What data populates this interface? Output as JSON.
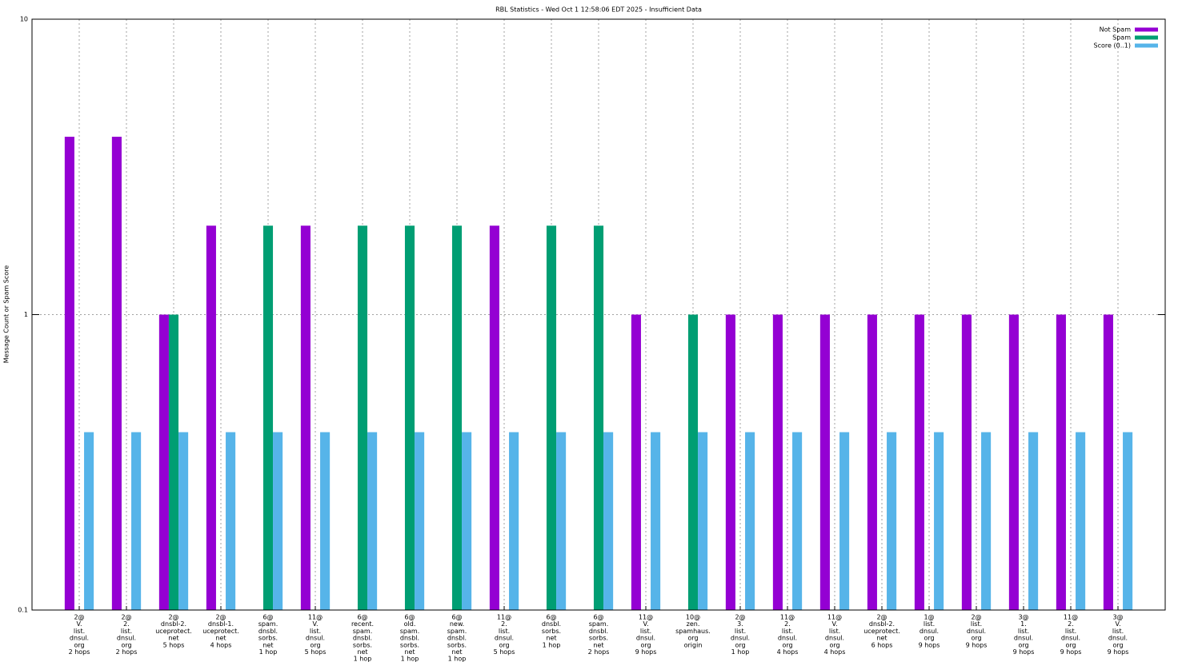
{
  "chart_data": {
    "type": "bar",
    "title": "RBL Statistics - Wed Oct  1 12:58:06 EDT 2025 - Insufficient Data",
    "y_label": "Message Count or Spam Score",
    "y_scale": "log",
    "ylim": [
      0.1,
      10
    ],
    "yticks": [
      0.1,
      1,
      10
    ],
    "grid": true,
    "legend_position": "top-right",
    "categories": [
      [
        "2@",
        "V.",
        "list.",
        "dnsul.",
        "org",
        "2 hops"
      ],
      [
        "2@",
        "2.",
        "list.",
        "dnsul.",
        "org",
        "2 hops"
      ],
      [
        "2@",
        "dnsbl-2.",
        "uceprotect.",
        "net",
        "5 hops"
      ],
      [
        "2@",
        "dnsbl-1.",
        "uceprotect.",
        "net",
        "4 hops"
      ],
      [
        "6@",
        "spam.",
        "dnsbl.",
        "sorbs.",
        "net",
        "1 hop"
      ],
      [
        "11@",
        "V.",
        "list.",
        "dnsul.",
        "org",
        "5 hops"
      ],
      [
        "6@",
        "recent.",
        "spam.",
        "dnsbl.",
        "sorbs.",
        "net",
        "1 hop"
      ],
      [
        "6@",
        "old.",
        "spam.",
        "dnsbl.",
        "sorbs.",
        "net",
        "1 hop"
      ],
      [
        "6@",
        "new.",
        "spam.",
        "dnsbl.",
        "sorbs.",
        "net",
        "1 hop"
      ],
      [
        "11@",
        "2.",
        "list.",
        "dnsul.",
        "org",
        "5 hops"
      ],
      [
        "6@",
        "dnsbl.",
        "sorbs.",
        "net",
        "1 hop"
      ],
      [
        "6@",
        "spam.",
        "dnsbl.",
        "sorbs.",
        "net",
        "2 hops"
      ],
      [
        "11@",
        "V.",
        "list.",
        "dnsul.",
        "org",
        "9 hops"
      ],
      [
        "10@",
        "zen.",
        "spamhaus.",
        "org",
        "origin"
      ],
      [
        "2@",
        "3.",
        "list.",
        "dnsul.",
        "org",
        "1 hop"
      ],
      [
        "11@",
        "2.",
        "list.",
        "dnsul.",
        "org",
        "4 hops"
      ],
      [
        "11@",
        "V.",
        "list.",
        "dnsul.",
        "org",
        "4 hops"
      ],
      [
        "2@",
        "dnsbl-2.",
        "uceprotect.",
        "net",
        "6 hops"
      ],
      [
        "1@",
        "list.",
        "dnsul.",
        "org",
        "9 hops"
      ],
      [
        "2@",
        "list.",
        "dnsul.",
        "org",
        "9 hops"
      ],
      [
        "3@",
        "1.",
        "list.",
        "dnsul.",
        "org",
        "9 hops"
      ],
      [
        "11@",
        "2.",
        "list.",
        "dnsul.",
        "org",
        "9 hops"
      ],
      [
        "3@",
        "V.",
        "list.",
        "dnsul.",
        "org",
        "9 hops"
      ]
    ],
    "series": [
      {
        "name": "Not Spam",
        "color": "#9400d3",
        "values": [
          4,
          4,
          1,
          2,
          null,
          2,
          null,
          null,
          null,
          2,
          null,
          null,
          1,
          null,
          1,
          1,
          1,
          1,
          1,
          1,
          1,
          1,
          1
        ]
      },
      {
        "name": "Spam",
        "color": "#009e73",
        "values": [
          null,
          null,
          1,
          null,
          2,
          null,
          2,
          2,
          2,
          null,
          2,
          2,
          null,
          1,
          null,
          null,
          null,
          null,
          null,
          null,
          null,
          null,
          null
        ]
      },
      {
        "name": "Score (0..1)",
        "color": "#56b4e9",
        "values": [
          0.4,
          0.4,
          0.4,
          0.4,
          0.4,
          0.4,
          0.4,
          0.4,
          0.4,
          0.4,
          0.4,
          0.4,
          0.4,
          0.4,
          0.4,
          0.4,
          0.4,
          0.4,
          0.4,
          0.4,
          0.4,
          0.4,
          0.4
        ]
      }
    ]
  }
}
